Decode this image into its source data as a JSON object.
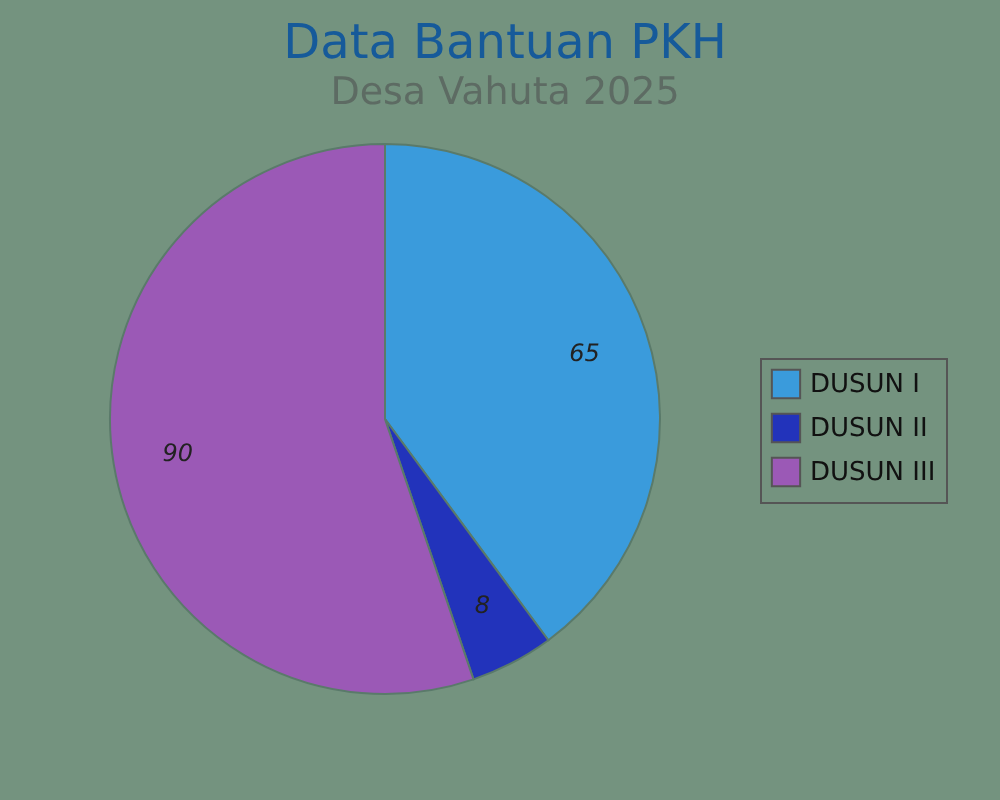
{
  "chart_data": {
    "type": "pie",
    "title": "Data Bantuan PKH",
    "subtitle": "Desa Vahuta 2025",
    "categories": [
      "DUSUN I",
      "DUSUN II",
      "DUSUN III"
    ],
    "values": [
      65,
      8,
      90
    ],
    "colors": [
      "#3a9bdc",
      "#2233bb",
      "#9b59b6"
    ],
    "data_labels": true,
    "legend": "right"
  }
}
